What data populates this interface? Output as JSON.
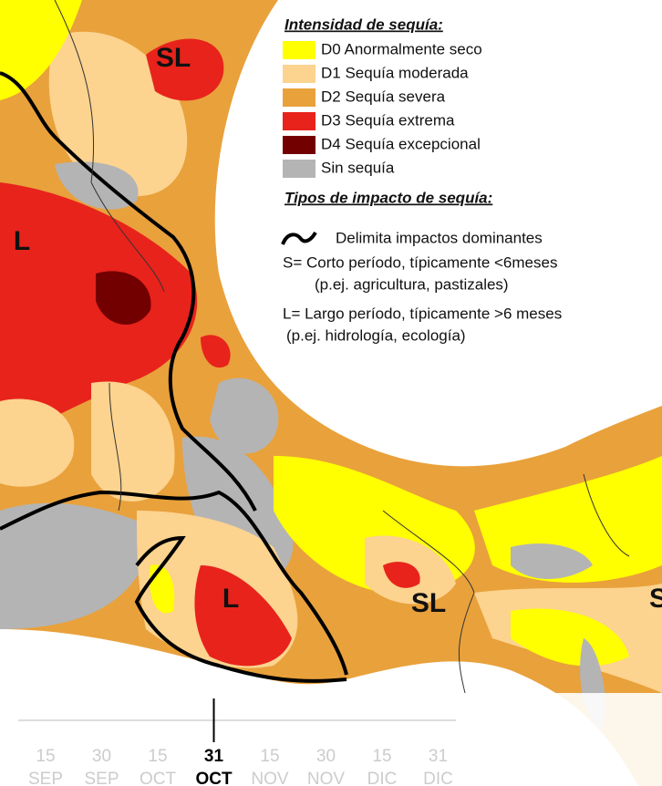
{
  "legend": {
    "title": "Intensidad de sequía:",
    "items": [
      {
        "label": "D0 Anormalmente seco",
        "color": "#ffff00"
      },
      {
        "label": "D1 Sequía moderada",
        "color": "#fcd38f"
      },
      {
        "label": "D2 Sequía severa",
        "color": "#e9a13b"
      },
      {
        "label": "D3 Sequía extrema",
        "color": "#e8231c"
      },
      {
        "label": "D4 Sequía excepcional",
        "color": "#730000"
      },
      {
        "label": "Sin sequía",
        "color": "#b4b4b4"
      }
    ]
  },
  "impact_legend": {
    "title": "Tipos de impacto de sequía:",
    "items": [
      "Delimita impactos dominantes",
      "S= Corto período, típicamente <6meses",
      "(p.ej. agricultura, pastizales)",
      "L= Largo período, típicamente >6 meses",
      "(p.ej. hidrología, ecología)"
    ]
  },
  "map_labels": [
    "SL",
    "L",
    "L",
    "SL",
    "S"
  ],
  "timeline": {
    "ticks": [
      {
        "day": "15",
        "month": "SEP"
      },
      {
        "day": "30",
        "month": "SEP"
      },
      {
        "day": "15",
        "month": "OCT"
      },
      {
        "day": "31",
        "month": "OCT"
      },
      {
        "day": "15",
        "month": "NOV"
      },
      {
        "day": "30",
        "month": "NOV"
      },
      {
        "day": "15",
        "month": "DIC"
      },
      {
        "day": "31",
        "month": "DIC"
      }
    ],
    "selected": 3
  }
}
